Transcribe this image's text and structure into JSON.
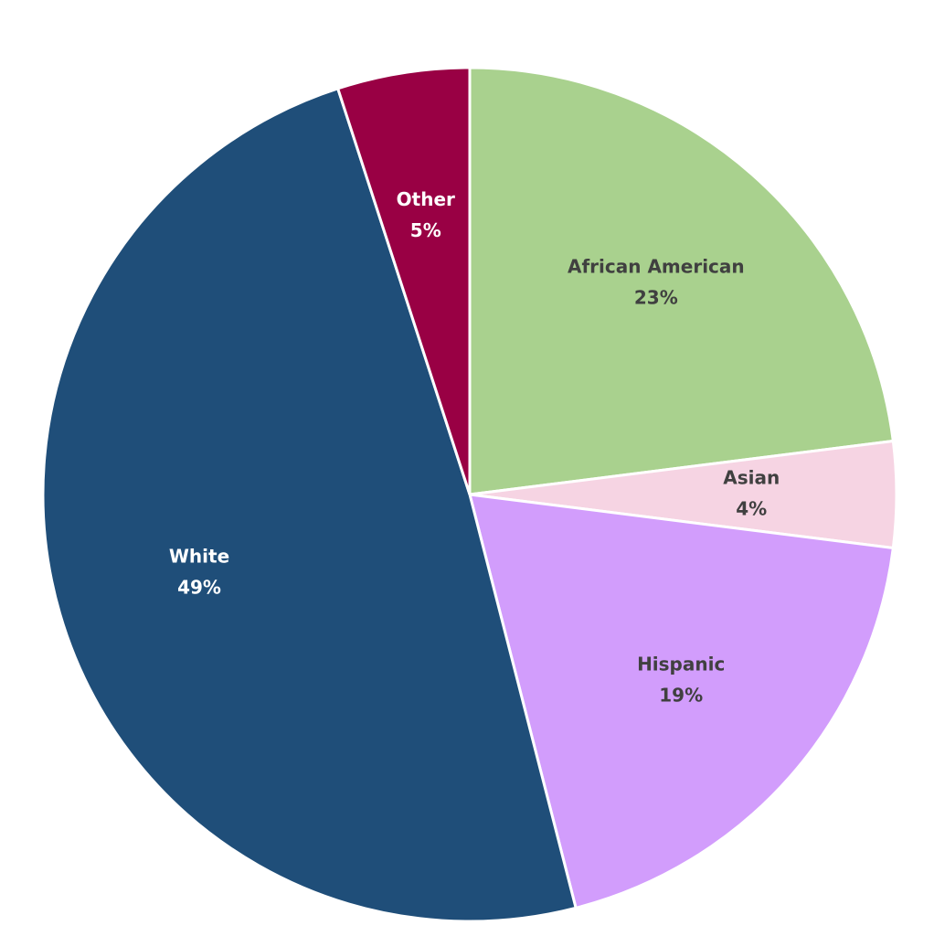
{
  "chart_data": {
    "type": "pie",
    "categories": [
      "African American",
      "Asian",
      "Hispanic",
      "White",
      "Other"
    ],
    "values": [
      23,
      4,
      19,
      49,
      5
    ],
    "value_labels": [
      "23%",
      "4%",
      "19%",
      "49%",
      "5%"
    ],
    "colors": [
      "#a9d18e",
      "#f6d4e3",
      "#d29dfc",
      "#1f4e79",
      "#990044"
    ]
  }
}
